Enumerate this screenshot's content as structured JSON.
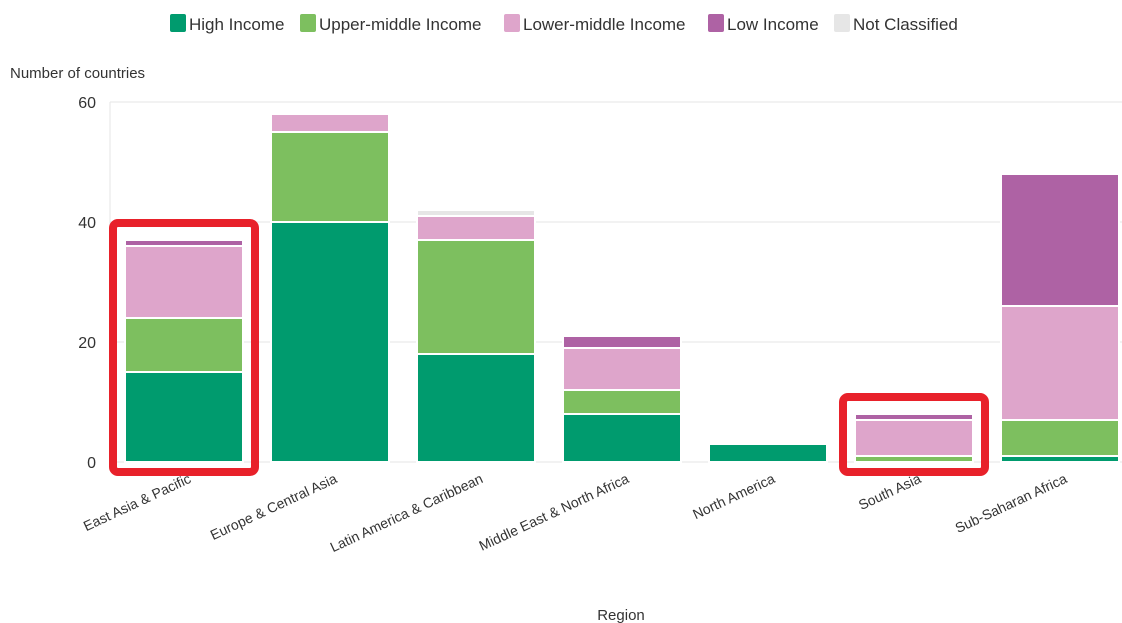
{
  "colors": {
    "high": "#009b6e",
    "upper": "#7dbf5f",
    "lower": "#dea5cb",
    "low": "#ae62a4",
    "notclassified": "#e6e6e6",
    "highlight": "#e8212a",
    "grid": "#e6e6e6"
  },
  "chart_data": {
    "type": "bar",
    "stacked": true,
    "title": "",
    "xlabel": "Region",
    "ylabel": "Number of countries",
    "ylim": [
      0,
      60
    ],
    "yticks": [
      0,
      20,
      40,
      60
    ],
    "grid": true,
    "legend": "top",
    "categories": [
      "East Asia & Pacific",
      "Europe & Central Asia",
      "Latin America & Caribbean",
      "Middle East & North Africa",
      "North America",
      "South Asia",
      "Sub-Saharan Africa"
    ],
    "series": [
      {
        "name": "High Income",
        "color_key": "high",
        "values": [
          15,
          40,
          18,
          8,
          3,
          0,
          1
        ]
      },
      {
        "name": "Upper-middle Income",
        "color_key": "upper",
        "values": [
          9,
          15,
          19,
          4,
          0,
          1,
          6
        ]
      },
      {
        "name": "Lower-middle Income",
        "color_key": "lower",
        "values": [
          12,
          3,
          4,
          7,
          0,
          6,
          19
        ]
      },
      {
        "name": "Low Income",
        "color_key": "low",
        "values": [
          1,
          0,
          0,
          2,
          0,
          1,
          22
        ]
      },
      {
        "name": "Not Classified",
        "color_key": "notclassified",
        "values": [
          0,
          0,
          1,
          0,
          0,
          0,
          0
        ]
      }
    ],
    "highlighted_categories": [
      "East Asia & Pacific",
      "South Asia"
    ]
  }
}
